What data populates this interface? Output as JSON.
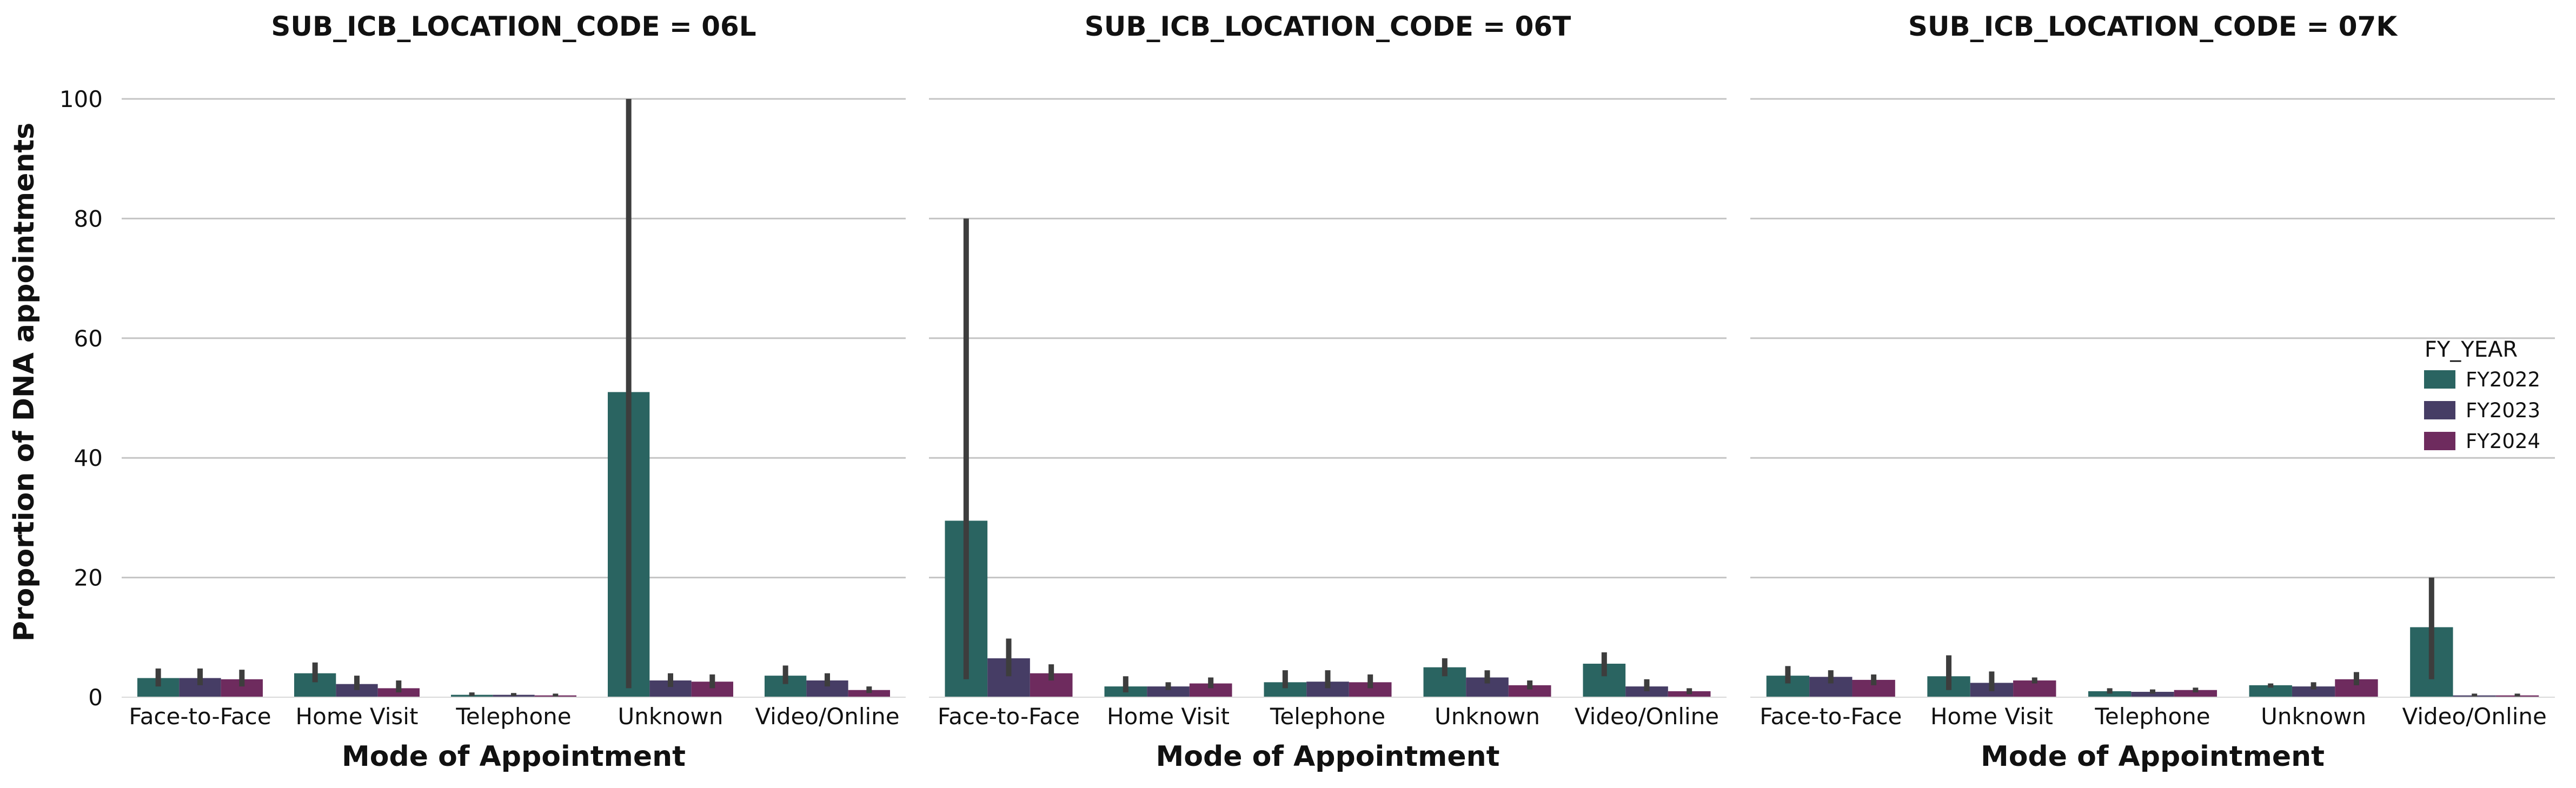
{
  "chart_data": {
    "type": "bar",
    "ylabel": "Proportion of DNA appointments",
    "xlabel": "Mode of Appointment",
    "ylim": [
      0,
      100
    ],
    "yticks": [
      0,
      20,
      40,
      60,
      80,
      100
    ],
    "grid": "horizontal",
    "legend": {
      "title": "FY_YEAR",
      "placement": "right",
      "entries": [
        "FY2022",
        "FY2023",
        "FY2024"
      ]
    },
    "colors": [
      "#2a6461",
      "#463d65",
      "#6e2b5e"
    ],
    "categories": [
      "Face-to-Face",
      "Home Visit",
      "Telephone",
      "Unknown",
      "Video/Online"
    ],
    "panels": [
      {
        "title": "SUB_ICB_LOCATION_CODE = 06L",
        "series": [
          {
            "name": "FY2022",
            "values": [
              3.2,
              4.0,
              0.4,
              51.0,
              3.6
            ],
            "error": [
              [
                1.8,
                4.8
              ],
              [
                2.5,
                5.8
              ],
              [
                0.2,
                0.8
              ],
              [
                1.5,
                100.0
              ],
              [
                2.2,
                5.3
              ]
            ]
          },
          {
            "name": "FY2023",
            "values": [
              3.2,
              2.2,
              0.4,
              2.8,
              2.8
            ],
            "error": [
              [
                2.0,
                4.8
              ],
              [
                1.2,
                3.6
              ],
              [
                0.2,
                0.7
              ],
              [
                1.7,
                4.0
              ],
              [
                1.8,
                4.0
              ]
            ]
          },
          {
            "name": "FY2024",
            "values": [
              3.0,
              1.5,
              0.3,
              2.6,
              1.2
            ],
            "error": [
              [
                1.8,
                4.6
              ],
              [
                0.8,
                2.8
              ],
              [
                0.1,
                0.6
              ],
              [
                1.5,
                3.8
              ],
              [
                0.7,
                1.8
              ]
            ]
          }
        ]
      },
      {
        "title": "SUB_ICB_LOCATION_CODE = 06T",
        "series": [
          {
            "name": "FY2022",
            "values": [
              29.5,
              1.8,
              2.5,
              5.0,
              5.6
            ],
            "error": [
              [
                3.0,
                80.0
              ],
              [
                0.8,
                3.5
              ],
              [
                1.5,
                4.5
              ],
              [
                3.5,
                6.5
              ],
              [
                3.5,
                7.5
              ]
            ]
          },
          {
            "name": "FY2023",
            "values": [
              6.5,
              1.8,
              2.6,
              3.3,
              1.8
            ],
            "error": [
              [
                3.5,
                9.8
              ],
              [
                1.2,
                2.5
              ],
              [
                1.5,
                4.5
              ],
              [
                2.3,
                4.5
              ],
              [
                1.0,
                3.0
              ]
            ]
          },
          {
            "name": "FY2024",
            "values": [
              4.0,
              2.3,
              2.5,
              2.0,
              1.0
            ],
            "error": [
              [
                2.8,
                5.5
              ],
              [
                1.5,
                3.3
              ],
              [
                1.5,
                3.8
              ],
              [
                1.3,
                2.8
              ],
              [
                0.5,
                1.5
              ]
            ]
          }
        ]
      },
      {
        "title": "SUB_ICB_LOCATION_CODE = 07K",
        "series": [
          {
            "name": "FY2022",
            "values": [
              3.6,
              3.5,
              1.0,
              2.0,
              11.7
            ],
            "error": [
              [
                2.3,
                5.2
              ],
              [
                1.2,
                7.0
              ],
              [
                0.6,
                1.5
              ],
              [
                1.6,
                2.3
              ],
              [
                3.0,
                20.0
              ]
            ]
          },
          {
            "name": "FY2023",
            "values": [
              3.4,
              2.4,
              0.9,
              1.8,
              0.3
            ],
            "error": [
              [
                2.3,
                4.5
              ],
              [
                1.0,
                4.3
              ],
              [
                0.6,
                1.3
              ],
              [
                1.3,
                2.5
              ],
              [
                0.1,
                0.6
              ]
            ]
          },
          {
            "name": "FY2024",
            "values": [
              2.9,
              2.8,
              1.2,
              3.0,
              0.3
            ],
            "error": [
              [
                2.0,
                3.8
              ],
              [
                2.3,
                3.3
              ],
              [
                0.8,
                1.6
              ],
              [
                2.0,
                4.2
              ],
              [
                0.1,
                0.6
              ]
            ]
          }
        ]
      }
    ]
  }
}
